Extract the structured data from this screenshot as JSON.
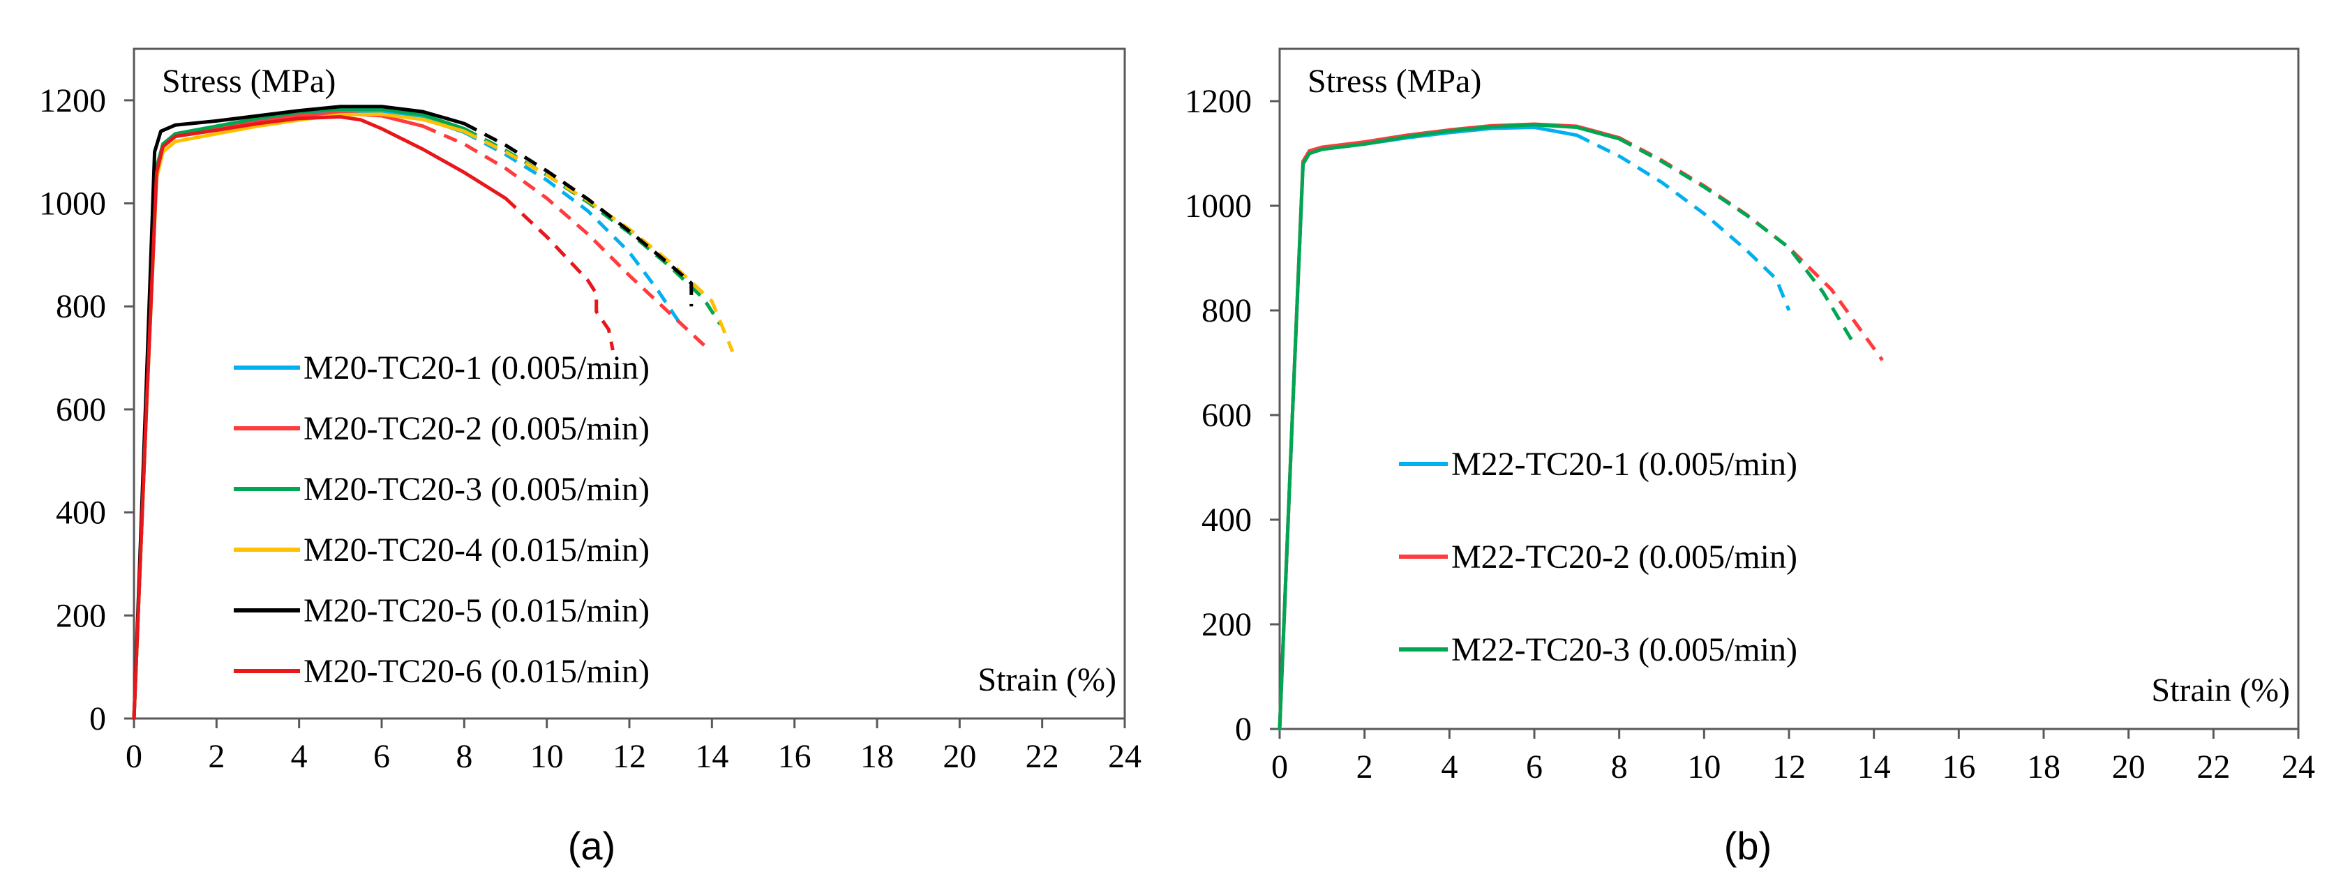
{
  "chart_data": [
    {
      "type": "line",
      "panel_label": "(a)",
      "title": "",
      "ylabel": "Stress (MPa)",
      "xlabel": "Strain (%)",
      "xlim": [
        0,
        24
      ],
      "ylim": [
        0,
        1300
      ],
      "xticks": [
        "0",
        "2",
        "4",
        "6",
        "8",
        "10",
        "12",
        "14",
        "16",
        "18",
        "20",
        "22",
        "24"
      ],
      "yticks": [
        "0",
        "200",
        "400",
        "600",
        "800",
        "1000",
        "1200"
      ],
      "grid": false,
      "legend_position": "left-inside",
      "series": [
        {
          "name": "M20-TC20-1 (0.005/min)",
          "color": "#00B0F0",
          "solid": [
            [
              0,
              0
            ],
            [
              0.3,
              600
            ],
            [
              0.55,
              1060
            ],
            [
              0.7,
              1110
            ],
            [
              1,
              1130
            ],
            [
              2,
              1145
            ],
            [
              3,
              1160
            ],
            [
              4,
              1172
            ],
            [
              5,
              1178
            ],
            [
              6,
              1178
            ],
            [
              7,
              1165
            ],
            [
              8,
              1138
            ]
          ],
          "dashed": [
            [
              8,
              1138
            ],
            [
              9,
              1095
            ],
            [
              10,
              1045
            ],
            [
              11,
              985
            ],
            [
              12,
              905
            ],
            [
              12.7,
              830
            ],
            [
              13.2,
              770
            ]
          ]
        },
        {
          "name": "M20-TC20-2 (0.005/min)",
          "color": "#FF3B3B",
          "solid": [
            [
              0,
              0
            ],
            [
              0.3,
              600
            ],
            [
              0.55,
              1060
            ],
            [
              0.7,
              1110
            ],
            [
              1,
              1130
            ],
            [
              2,
              1145
            ],
            [
              3,
              1158
            ],
            [
              4,
              1170
            ],
            [
              5,
              1175
            ],
            [
              6,
              1170
            ],
            [
              7,
              1150
            ]
          ],
          "dashed": [
            [
              7,
              1150
            ],
            [
              8,
              1115
            ],
            [
              9,
              1068
            ],
            [
              10,
              1010
            ],
            [
              11,
              940
            ],
            [
              12,
              860
            ],
            [
              13,
              785
            ],
            [
              13.9,
              718
            ]
          ]
        },
        {
          "name": "M20-TC20-3 (0.005/min)",
          "color": "#00A651",
          "solid": [
            [
              0,
              0
            ],
            [
              0.3,
              600
            ],
            [
              0.55,
              1070
            ],
            [
              0.7,
              1115
            ],
            [
              1,
              1135
            ],
            [
              2,
              1150
            ],
            [
              3,
              1165
            ],
            [
              4,
              1177
            ],
            [
              5,
              1183
            ],
            [
              6,
              1183
            ],
            [
              7,
              1172
            ],
            [
              8,
              1145
            ]
          ],
          "dashed": [
            [
              8,
              1145
            ],
            [
              9,
              1103
            ],
            [
              10,
              1055
            ],
            [
              11,
              1002
            ],
            [
              12,
              943
            ],
            [
              13,
              876
            ],
            [
              13.8,
              815
            ],
            [
              14.2,
              765
            ]
          ]
        },
        {
          "name": "M20-TC20-4 (0.015/min)",
          "color": "#FFC000",
          "solid": [
            [
              0,
              0
            ],
            [
              0.3,
              600
            ],
            [
              0.55,
              1050
            ],
            [
              0.7,
              1100
            ],
            [
              1,
              1120
            ],
            [
              2,
              1135
            ],
            [
              3,
              1150
            ],
            [
              4,
              1162
            ],
            [
              5,
              1172
            ],
            [
              6,
              1173
            ],
            [
              7,
              1163
            ],
            [
              8,
              1140
            ]
          ],
          "dashed": [
            [
              8,
              1140
            ],
            [
              9,
              1100
            ],
            [
              10,
              1055
            ],
            [
              11,
              1005
            ],
            [
              12,
              950
            ],
            [
              13,
              885
            ],
            [
              14,
              810
            ],
            [
              14.5,
              712
            ]
          ]
        },
        {
          "name": "M20-TC20-5 (0.015/min)",
          "color": "#000000",
          "solid": [
            [
              0,
              0
            ],
            [
              0.3,
              650
            ],
            [
              0.5,
              1100
            ],
            [
              0.65,
              1140
            ],
            [
              1,
              1152
            ],
            [
              2,
              1160
            ],
            [
              3,
              1170
            ],
            [
              4,
              1180
            ],
            [
              5,
              1188
            ],
            [
              6,
              1188
            ],
            [
              7,
              1178
            ],
            [
              8,
              1155
            ]
          ],
          "dashed": [
            [
              8,
              1155
            ],
            [
              9,
              1113
            ],
            [
              10,
              1063
            ],
            [
              11,
              1008
            ],
            [
              12,
              946
            ],
            [
              13,
              880
            ],
            [
              13.5,
              845
            ],
            [
              13.5,
              800
            ]
          ]
        },
        {
          "name": "M20-TC20-6 (0.015/min)",
          "color": "#E8171B",
          "solid": [
            [
              0,
              0
            ],
            [
              0.3,
              600
            ],
            [
              0.55,
              1060
            ],
            [
              0.7,
              1110
            ],
            [
              1,
              1130
            ],
            [
              2,
              1142
            ],
            [
              3,
              1155
            ],
            [
              4,
              1165
            ],
            [
              5,
              1168
            ],
            [
              5.5,
              1162
            ],
            [
              6,
              1145
            ],
            [
              7,
              1105
            ],
            [
              8,
              1060
            ],
            [
              9,
              1010
            ]
          ],
          "dashed": [
            [
              9,
              1010
            ],
            [
              10,
              935
            ],
            [
              11,
              850
            ],
            [
              11.2,
              825
            ],
            [
              11.2,
              790
            ],
            [
              11.5,
              755
            ],
            [
              11.6,
              715
            ]
          ]
        }
      ]
    },
    {
      "type": "line",
      "panel_label": "(b)",
      "title": "",
      "ylabel": "Stress (MPa)",
      "xlabel": "Strain (%)",
      "xlim": [
        0,
        24
      ],
      "ylim": [
        0,
        1300
      ],
      "xticks": [
        "0",
        "2",
        "4",
        "6",
        "8",
        "10",
        "12",
        "14",
        "16",
        "18",
        "20",
        "22",
        "24"
      ],
      "yticks": [
        "0",
        "200",
        "400",
        "600",
        "800",
        "1000",
        "1200"
      ],
      "grid": false,
      "legend_position": "left-inside",
      "series": [
        {
          "name": "M22-TC20-1 (0.005/min)",
          "color": "#00B0F0",
          "solid": [
            [
              0,
              0
            ],
            [
              0.3,
              600
            ],
            [
              0.55,
              1080
            ],
            [
              0.7,
              1100
            ],
            [
              1,
              1108
            ],
            [
              2,
              1118
            ],
            [
              3,
              1130
            ],
            [
              4,
              1140
            ],
            [
              5,
              1148
            ],
            [
              6,
              1150
            ],
            [
              7,
              1135
            ]
          ],
          "dashed": [
            [
              7,
              1135
            ],
            [
              8,
              1095
            ],
            [
              9,
              1045
            ],
            [
              10,
              985
            ],
            [
              11,
              915
            ],
            [
              11.7,
              860
            ],
            [
              12,
              800
            ]
          ]
        },
        {
          "name": "M22-TC20-2 (0.005/min)",
          "color": "#FF3B3B",
          "solid": [
            [
              0,
              0
            ],
            [
              0.3,
              600
            ],
            [
              0.55,
              1085
            ],
            [
              0.7,
              1105
            ],
            [
              1,
              1112
            ],
            [
              2,
              1122
            ],
            [
              3,
              1135
            ],
            [
              4,
              1145
            ],
            [
              5,
              1153
            ],
            [
              6,
              1156
            ],
            [
              7,
              1152
            ],
            [
              8,
              1130
            ]
          ],
          "dashed": [
            [
              8,
              1130
            ],
            [
              9,
              1087
            ],
            [
              10,
              1038
            ],
            [
              11,
              983
            ],
            [
              12,
              920
            ],
            [
              13,
              840
            ],
            [
              14.2,
              705
            ]
          ]
        },
        {
          "name": "M22-TC20-3 (0.005/min)",
          "color": "#00A651",
          "solid": [
            [
              0,
              0
            ],
            [
              0.3,
              600
            ],
            [
              0.55,
              1080
            ],
            [
              0.7,
              1100
            ],
            [
              1,
              1108
            ],
            [
              2,
              1118
            ],
            [
              3,
              1132
            ],
            [
              4,
              1143
            ],
            [
              5,
              1151
            ],
            [
              6,
              1155
            ],
            [
              7,
              1150
            ],
            [
              8,
              1128
            ]
          ],
          "dashed": [
            [
              8,
              1128
            ],
            [
              9,
              1085
            ],
            [
              10,
              1036
            ],
            [
              11,
              982
            ],
            [
              12,
              920
            ],
            [
              12.8,
              835
            ],
            [
              13.5,
              740
            ]
          ]
        }
      ]
    }
  ]
}
